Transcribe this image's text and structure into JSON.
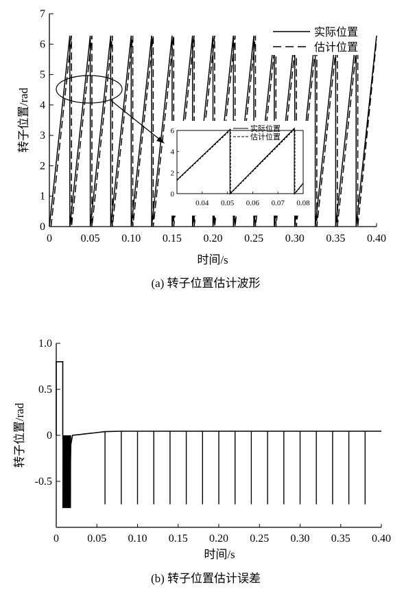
{
  "chart_data": [
    {
      "type": "line",
      "caption": "(a) 转子位置估计波形",
      "xlabel": "时间/s",
      "ylabel": "转子位置/rad",
      "xlim": [
        0,
        0.4
      ],
      "ylim": [
        0,
        7
      ],
      "x_ticks": [
        "0",
        "0.05",
        "0.10",
        "0.15",
        "0.20",
        "0.25",
        "0.30",
        "0.35",
        "0.40"
      ],
      "y_ticks": [
        "0",
        "1",
        "2",
        "3",
        "4",
        "5",
        "6",
        "7"
      ],
      "legend_position": "top-right",
      "series": [
        {
          "name": "实际位置",
          "style": "solid",
          "x": [
            0.0,
            0.025,
            0.025,
            0.05,
            0.05,
            0.075,
            0.075,
            0.1,
            0.1,
            0.125,
            0.125,
            0.15,
            0.15,
            0.175,
            0.175,
            0.2,
            0.2,
            0.225,
            0.225,
            0.25,
            0.25,
            0.275,
            0.275,
            0.3,
            0.3,
            0.325,
            0.325,
            0.35,
            0.35,
            0.375,
            0.375,
            0.4
          ],
          "y": [
            0,
            6.28,
            0,
            6.28,
            0,
            6.28,
            0,
            6.28,
            0,
            6.28,
            0,
            6.28,
            0,
            6.28,
            0,
            6.28,
            0,
            6.28,
            0,
            6.28,
            0,
            6.28,
            0,
            6.28,
            0,
            6.28,
            0,
            6.28,
            0,
            6.28,
            0,
            6.28
          ]
        },
        {
          "name": "估计位置",
          "style": "dashed",
          "x": [
            0.002,
            0.027,
            0.027,
            0.052,
            0.052,
            0.077,
            0.077,
            0.102,
            0.102,
            0.127,
            0.127,
            0.152,
            0.152,
            0.177,
            0.177,
            0.202,
            0.202,
            0.227,
            0.227,
            0.252,
            0.252,
            0.277,
            0.277,
            0.302,
            0.302,
            0.327,
            0.327,
            0.352,
            0.352,
            0.377,
            0.377,
            0.4
          ],
          "y": [
            0,
            6.28,
            0,
            6.28,
            0,
            6.28,
            0,
            6.28,
            0,
            6.28,
            0,
            6.28,
            0,
            6.28,
            0,
            6.28,
            0,
            6.28,
            0,
            6.28,
            0,
            6.28,
            0,
            6.28,
            0,
            6.28,
            0,
            6.28,
            0,
            6.28,
            0,
            6.15
          ]
        }
      ],
      "inset": {
        "xlim": [
          0.03,
          0.08
        ],
        "ylim": [
          0,
          6
        ],
        "x_ticks": [
          "0.04",
          "0.05",
          "0.06",
          "0.07",
          "0.08"
        ],
        "y_ticks": [
          "0",
          "2",
          "4",
          "6"
        ],
        "legend": [
          "实际位置",
          "估计位置"
        ],
        "series": [
          {
            "name": "实际位置",
            "x": [
              0.03,
              0.051,
              0.051,
              0.0765,
              0.0765,
              0.078,
              0.08
            ],
            "y": [
              1.3,
              6.1,
              0,
              6.2,
              0,
              0.4,
              1.0
            ]
          },
          {
            "name": "估计位置",
            "x": [
              0.03,
              0.0512,
              0.0512,
              0.0767,
              0.0767,
              0.078,
              0.08
            ],
            "y": [
              1.25,
              6.05,
              0,
              6.15,
              0,
              0.35,
              0.95
            ]
          }
        ]
      }
    },
    {
      "type": "line",
      "caption": "(b) 转子位置估计误差",
      "xlabel": "时间/s",
      "ylabel": "转子位置/rad",
      "xlim": [
        0,
        0.4
      ],
      "ylim": [
        -1.0,
        1.0
      ],
      "x_ticks": [
        "0",
        "0.05",
        "0.10",
        "0.15",
        "0.20",
        "0.25",
        "0.30",
        "0.35",
        "0.40"
      ],
      "y_ticks": [
        "1.0",
        "0.5",
        "0",
        "-0.5"
      ],
      "series": [
        {
          "name": "",
          "x": [
            0.0,
            0.0,
            0.008,
            0.008,
            0.012,
            0.014,
            0.016,
            0.018,
            0.02,
            0.03,
            0.04,
            0.05,
            0.06,
            0.08,
            0.1,
            0.15,
            0.2,
            0.25,
            0.3,
            0.35,
            0.4
          ],
          "y": [
            0,
            0.8,
            0.8,
            0,
            -0.78,
            -0.3,
            -0.79,
            -0.1,
            0.0,
            0.01,
            0.02,
            0.03,
            0.04,
            0.045,
            0.045,
            0.045,
            0.045,
            0.045,
            0.045,
            0.045,
            0.045
          ]
        }
      ],
      "spikes": {
        "x": [
          0.06,
          0.08,
          0.1,
          0.12,
          0.14,
          0.16,
          0.18,
          0.2,
          0.22,
          0.24,
          0.26,
          0.28,
          0.3,
          0.32,
          0.34,
          0.36,
          0.38
        ],
        "y": -0.75
      }
    }
  ]
}
